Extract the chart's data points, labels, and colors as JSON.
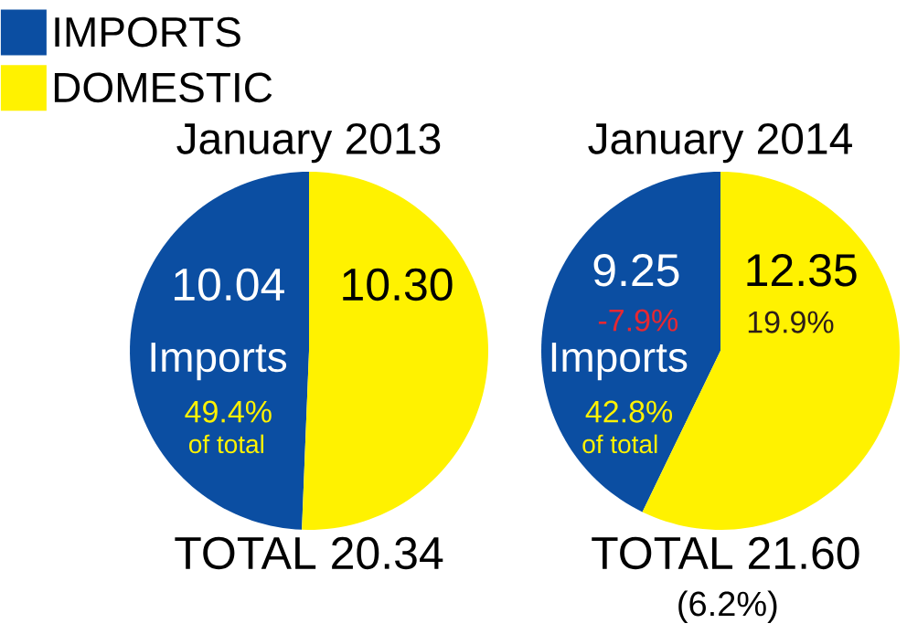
{
  "chart_data": [
    {
      "type": "pie",
      "title": "January 2013",
      "categories": [
        "IMPORTS",
        "DOMESTIC"
      ],
      "values": [
        10.04,
        10.3
      ],
      "value_labels": [
        "10.04",
        "10.30"
      ],
      "colors": [
        "#0b4ea2",
        "#fff200"
      ],
      "legend": "top left",
      "annotations": [
        "Imports",
        "49.4%",
        "of total",
        "TOTAL 20.34"
      ]
    },
    {
      "type": "pie",
      "title": "January 2014",
      "categories": [
        null,
        null
      ],
      "values": [
        9.25,
        12.35
      ],
      "value_labels": [
        "9.25",
        "12.35"
      ],
      "colors": [
        "#0b4ea2",
        "#fff200"
      ],
      "annotations": [
        "-7.9%",
        "Imports",
        "42.8%",
        "of total",
        "19.9%",
        "TOTAL 21.60",
        "(6.2%)"
      ]
    }
  ]
}
